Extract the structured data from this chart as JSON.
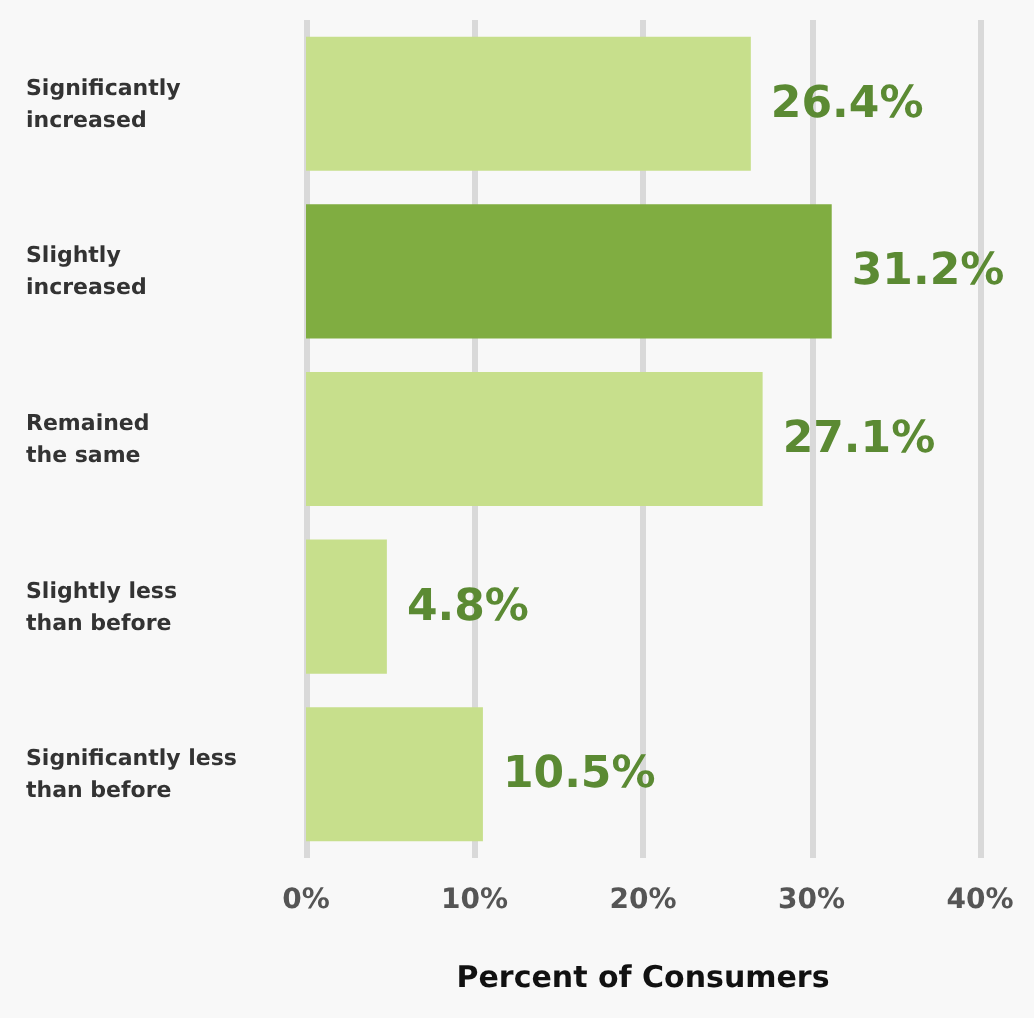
{
  "chart_data": {
    "type": "bar",
    "orientation": "horizontal",
    "xlabel": "Percent of Consumers",
    "categories": [
      "Significantly\nincreased",
      "Slightly\nincreased",
      "Remained\nthe same",
      "Slightly less\nthan before",
      "Significantly less\nthan before"
    ],
    "values": [
      26.4,
      31.2,
      27.1,
      4.8,
      10.5
    ],
    "colors": [
      "#c7df8c",
      "#80ad41",
      "#c7df8c",
      "#c7df8c",
      "#c7df8c"
    ],
    "value_labels": [
      "26.4%",
      "31.2%",
      "27.1%",
      "4.8%",
      "10.5%"
    ],
    "xlim": [
      0,
      40
    ],
    "xticks": [
      {
        "value": 0,
        "label": "0%"
      },
      {
        "value": 10,
        "label": "10%"
      },
      {
        "value": 20,
        "label": "20%"
      },
      {
        "value": 30,
        "label": "30%"
      },
      {
        "value": 40,
        "label": "40%"
      }
    ],
    "grid": "x"
  }
}
